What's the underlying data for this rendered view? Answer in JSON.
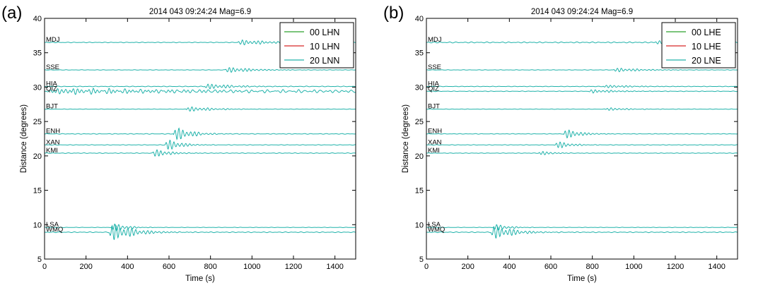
{
  "chart_data": [
    {
      "type": "line",
      "panel_label": "(a)",
      "title": "2014 043 09:24:24 Mag=6.9",
      "xlabel": "Time (s)",
      "ylabel": "Distance (degrees)",
      "xlim": [
        0,
        1500
      ],
      "ylim": [
        5,
        40
      ],
      "xticks": [
        "0",
        "200",
        "400",
        "600",
        "800",
        "1000",
        "1200",
        "1400"
      ],
      "yticks": [
        "5",
        "10",
        "15",
        "20",
        "25",
        "30",
        "35",
        "40"
      ],
      "legend": {
        "placement": "top-right",
        "entries": [
          {
            "label": "00 LHN",
            "color": "#2ca02c"
          },
          {
            "label": "10 LHN",
            "color": "#d62728"
          },
          {
            "label": "20 LNN",
            "color": "#20b2aa"
          }
        ]
      },
      "stations": [
        {
          "name": "MDJ",
          "distance": 36.5,
          "arrival": 930,
          "amplitude": 0.5,
          "duration": 300,
          "noise": 0.05
        },
        {
          "name": "SSE",
          "distance": 32.5,
          "arrival": 870,
          "amplitude": 0.55,
          "duration": 250,
          "noise": 0.03
        },
        {
          "name": "HIA",
          "distance": 30.1,
          "arrival": 770,
          "amplitude": 0.55,
          "duration": 250,
          "noise": 0.05
        },
        {
          "name": "QIZ",
          "distance": 29.4,
          "arrival": 30,
          "amplitude": 0.4,
          "duration": 1400,
          "noise": 0.2
        },
        {
          "name": "BJT",
          "distance": 26.8,
          "arrival": 680,
          "amplitude": 0.5,
          "duration": 230,
          "noise": 0.03
        },
        {
          "name": "ENH",
          "distance": 23.2,
          "arrival": 620,
          "amplitude": 1.5,
          "duration": 150,
          "noise": 0.05
        },
        {
          "name": "XAN",
          "distance": 21.6,
          "arrival": 580,
          "amplitude": 1.3,
          "duration": 130,
          "noise": 0.04
        },
        {
          "name": "KMI",
          "distance": 20.4,
          "arrival": 520,
          "amplitude": 0.9,
          "duration": 140,
          "noise": 0.05
        },
        {
          "name": "LSA",
          "distance": 9.6,
          "arrival": 320,
          "amplitude": 1.0,
          "duration": 120,
          "noise": 0.03
        },
        {
          "name": "WMQ",
          "distance": 8.9,
          "arrival": 310,
          "amplitude": 1.7,
          "duration": 220,
          "noise": 0.06
        }
      ],
      "visible_series": "20 LNN"
    },
    {
      "type": "line",
      "panel_label": "(b)",
      "title": "2014 043 09:24:24 Mag=6.9",
      "xlabel": "Time (s)",
      "ylabel": "Distance (degrees)",
      "xlim": [
        0,
        1500
      ],
      "ylim": [
        5,
        40
      ],
      "xticks": [
        "0",
        "200",
        "400",
        "600",
        "800",
        "1000",
        "1200",
        "1400"
      ],
      "yticks": [
        "5",
        "10",
        "15",
        "20",
        "25",
        "30",
        "35",
        "40"
      ],
      "legend": {
        "placement": "top-right",
        "entries": [
          {
            "label": "00 LHE",
            "color": "#2ca02c"
          },
          {
            "label": "10 LHE",
            "color": "#d62728"
          },
          {
            "label": "20 LNE",
            "color": "#20b2aa"
          }
        ]
      },
      "stations": [
        {
          "name": "MDJ",
          "distance": 36.5,
          "arrival": 1100,
          "amplitude": 0.35,
          "duration": 250,
          "noise": 0.08
        },
        {
          "name": "SSE",
          "distance": 32.5,
          "arrival": 900,
          "amplitude": 0.4,
          "duration": 250,
          "noise": 0.03
        },
        {
          "name": "HIA",
          "distance": 30.1,
          "arrival": 850,
          "amplitude": 0.3,
          "duration": 250,
          "noise": 0.04
        },
        {
          "name": "QIZ",
          "distance": 29.4,
          "arrival": 780,
          "amplitude": 0.35,
          "duration": 250,
          "noise": 0.04
        },
        {
          "name": "BJT",
          "distance": 26.8,
          "arrival": 860,
          "amplitude": 0.3,
          "duration": 200,
          "noise": 0.03
        },
        {
          "name": "ENH",
          "distance": 23.2,
          "arrival": 660,
          "amplitude": 1.1,
          "duration": 140,
          "noise": 0.04
        },
        {
          "name": "XAN",
          "distance": 21.6,
          "arrival": 620,
          "amplitude": 0.9,
          "duration": 120,
          "noise": 0.04
        },
        {
          "name": "KMI",
          "distance": 20.4,
          "arrival": 540,
          "amplitude": 0.5,
          "duration": 120,
          "noise": 0.04
        },
        {
          "name": "LSA",
          "distance": 9.6,
          "arrival": 320,
          "amplitude": 0.8,
          "duration": 120,
          "noise": 0.03
        },
        {
          "name": "WMQ",
          "distance": 8.9,
          "arrival": 310,
          "amplitude": 1.4,
          "duration": 200,
          "noise": 0.06
        }
      ],
      "visible_series": "20 LNE"
    }
  ]
}
